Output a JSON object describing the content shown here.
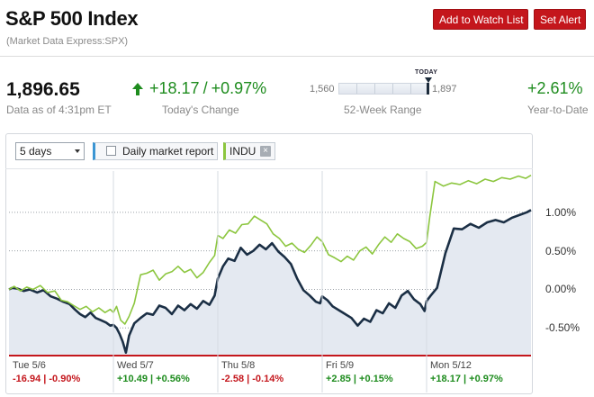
{
  "header": {
    "title": "S&P 500 Index",
    "subtitle": "(Market Data Express:SPX)",
    "watch_button": "Add to Watch List",
    "alert_button": "Set Alert"
  },
  "quote": {
    "price": "1,896.65",
    "as_of": "Data as of 4:31pm ET",
    "change": "+18.17",
    "change_sep": "/",
    "change_pct": "+0.97%",
    "change_label": "Today's Change",
    "range_low": "1,560",
    "range_high": "1,897",
    "range_today": "TODAY",
    "range_label": "52-Week Range",
    "ytd": "+2.61%",
    "ytd_label": "Year-to-Date",
    "accent_up": "#1e8c1e",
    "accent_down": "#c4161c"
  },
  "toolbar": {
    "period": "5 days",
    "daily_report": "Daily market report",
    "daily_report_checked": false,
    "comparison": "INDU",
    "remove_glyph": "×"
  },
  "days": [
    {
      "label": "Tue 5/6",
      "change": "-16.94 | -0.90%",
      "direction": "down"
    },
    {
      "label": "Wed 5/7",
      "change": "+10.49 | +0.56%",
      "direction": "up"
    },
    {
      "label": "Thu 5/8",
      "change": "-2.58 | -0.14%",
      "direction": "down"
    },
    {
      "label": "Fri 5/9",
      "change": "+2.85 | +0.15%",
      "direction": "up"
    },
    {
      "label": "Mon 5/12",
      "change": "+18.17 | +0.97%",
      "direction": "up"
    }
  ],
  "chart_data": {
    "type": "line",
    "ylim": [
      -0.8,
      1.5
    ],
    "y_ticks": [
      "1.00%",
      "0.50%",
      "0.00%",
      "-0.50%"
    ],
    "y_tick_values": [
      1.0,
      0.5,
      0.0,
      -0.5
    ],
    "x_range": [
      0,
      5
    ],
    "series": [
      {
        "name": "S&P 500",
        "color": "#1b2f45",
        "fill": "#e4e9f1",
        "x": [
          0,
          0.03,
          0.08,
          0.14,
          0.2,
          0.27,
          0.33,
          0.4,
          0.46,
          0.52,
          0.58,
          0.63,
          0.68,
          0.73,
          0.78,
          0.83,
          0.88,
          0.93,
          0.97,
          1.0,
          1.03,
          1.06,
          1.09,
          1.12,
          1.15,
          1.2,
          1.26,
          1.32,
          1.38,
          1.44,
          1.5,
          1.56,
          1.62,
          1.68,
          1.74,
          1.8,
          1.86,
          1.92,
          1.97,
          2.0,
          2.05,
          2.1,
          2.16,
          2.22,
          2.28,
          2.34,
          2.4,
          2.46,
          2.52,
          2.58,
          2.64,
          2.7,
          2.76,
          2.82,
          2.88,
          2.94,
          2.98,
          3.0,
          3.05,
          3.1,
          3.16,
          3.22,
          3.28,
          3.34,
          3.4,
          3.46,
          3.52,
          3.58,
          3.64,
          3.7,
          3.76,
          3.82,
          3.88,
          3.94,
          3.98,
          4.0,
          4.04,
          4.1,
          4.18,
          4.26,
          4.34,
          4.42,
          4.5,
          4.58,
          4.66,
          4.74,
          4.82,
          4.9,
          4.96,
          5.0
        ],
        "y": [
          0.0,
          0.02,
          0.01,
          -0.02,
          -0.0,
          -0.04,
          -0.01,
          -0.09,
          -0.12,
          -0.16,
          -0.19,
          -0.26,
          -0.32,
          -0.36,
          -0.3,
          -0.37,
          -0.4,
          -0.43,
          -0.47,
          -0.46,
          -0.5,
          -0.58,
          -0.68,
          -0.82,
          -0.6,
          -0.44,
          -0.37,
          -0.31,
          -0.33,
          -0.21,
          -0.24,
          -0.32,
          -0.21,
          -0.27,
          -0.19,
          -0.25,
          -0.15,
          -0.2,
          -0.08,
          0.14,
          0.3,
          0.4,
          0.37,
          0.54,
          0.45,
          0.5,
          0.58,
          0.52,
          0.6,
          0.49,
          0.42,
          0.33,
          0.14,
          -0.01,
          -0.08,
          -0.16,
          -0.18,
          -0.09,
          -0.14,
          -0.22,
          -0.27,
          -0.32,
          -0.37,
          -0.47,
          -0.38,
          -0.42,
          -0.27,
          -0.31,
          -0.18,
          -0.24,
          -0.08,
          -0.02,
          -0.13,
          -0.19,
          -0.28,
          -0.15,
          -0.08,
          0.02,
          0.47,
          0.79,
          0.78,
          0.85,
          0.8,
          0.87,
          0.9,
          0.87,
          0.93,
          0.97,
          1.0,
          1.03
        ]
      },
      {
        "name": "INDU",
        "color": "#8cc63f",
        "x": [
          0,
          0.05,
          0.11,
          0.17,
          0.23,
          0.3,
          0.37,
          0.44,
          0.5,
          0.56,
          0.62,
          0.68,
          0.74,
          0.8,
          0.86,
          0.92,
          0.97,
          1.0,
          1.03,
          1.07,
          1.11,
          1.15,
          1.2,
          1.26,
          1.32,
          1.38,
          1.44,
          1.5,
          1.56,
          1.62,
          1.68,
          1.74,
          1.8,
          1.86,
          1.92,
          1.97,
          2.0,
          2.05,
          2.11,
          2.17,
          2.23,
          2.29,
          2.35,
          2.41,
          2.47,
          2.53,
          2.59,
          2.65,
          2.71,
          2.77,
          2.83,
          2.89,
          2.95,
          3.0,
          3.06,
          3.12,
          3.18,
          3.24,
          3.3,
          3.36,
          3.42,
          3.48,
          3.54,
          3.6,
          3.66,
          3.72,
          3.78,
          3.84,
          3.9,
          3.96,
          4.0,
          4.03,
          4.08,
          4.16,
          4.24,
          4.32,
          4.4,
          4.48,
          4.56,
          4.64,
          4.72,
          4.8,
          4.88,
          4.95,
          5.0
        ],
        "y": [
          0.0,
          0.04,
          -0.02,
          0.03,
          -0.0,
          0.05,
          -0.04,
          -0.02,
          -0.14,
          -0.16,
          -0.21,
          -0.26,
          -0.22,
          -0.29,
          -0.24,
          -0.3,
          -0.26,
          -0.3,
          -0.22,
          -0.4,
          -0.45,
          -0.35,
          -0.18,
          0.19,
          0.21,
          0.25,
          0.12,
          0.2,
          0.23,
          0.3,
          0.22,
          0.26,
          0.15,
          0.22,
          0.35,
          0.44,
          0.7,
          0.66,
          0.77,
          0.73,
          0.84,
          0.85,
          0.95,
          0.9,
          0.85,
          0.72,
          0.66,
          0.56,
          0.6,
          0.52,
          0.48,
          0.57,
          0.68,
          0.62,
          0.45,
          0.41,
          0.36,
          0.43,
          0.38,
          0.5,
          0.55,
          0.46,
          0.58,
          0.68,
          0.61,
          0.72,
          0.66,
          0.62,
          0.53,
          0.56,
          0.61,
          0.94,
          1.4,
          1.34,
          1.38,
          1.36,
          1.41,
          1.37,
          1.43,
          1.4,
          1.45,
          1.43,
          1.47,
          1.44,
          1.48
        ]
      }
    ]
  }
}
